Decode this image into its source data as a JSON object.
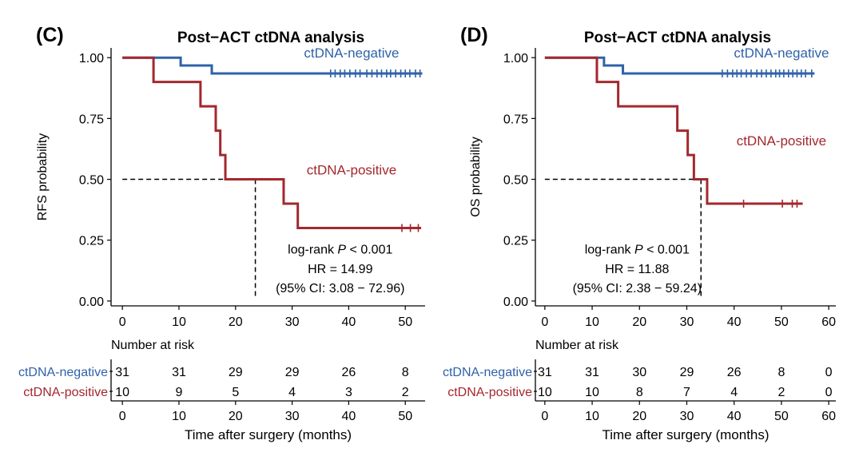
{
  "colors": {
    "negative": "#2f62a8",
    "positive": "#a3282e",
    "axis": "#000000"
  },
  "chart_data": [
    {
      "type": "line",
      "panel": "(C)",
      "title": "Post−ACT ctDNA analysis",
      "xlabel": "Time after surgery (months)",
      "ylabel": "RFS probability",
      "xlim": [
        -2,
        53.5
      ],
      "ylim": [
        -0.02,
        1.04
      ],
      "xticks": [
        0,
        10,
        20,
        30,
        40,
        50
      ],
      "yticks": [
        "0.00",
        "0.25",
        "0.50",
        "0.75",
        "1.00"
      ],
      "series": [
        {
          "name": "ctDNA-negative",
          "color": "#2f62a8",
          "steps": [
            [
              0,
              1.0
            ],
            [
              10.3,
              0.968
            ],
            [
              15.8,
              0.935
            ],
            [
              53,
              0.935
            ]
          ],
          "censored": [
            36.8,
            37.6,
            38.5,
            39.3,
            40.2,
            41.2,
            42.0,
            43.2,
            44.1,
            45.0,
            45.8,
            46.7,
            47.4,
            48.3,
            49.2,
            50.0,
            50.8,
            51.8,
            52.6
          ]
        },
        {
          "name": "ctDNA-positive",
          "color": "#a3282e",
          "steps": [
            [
              0,
              1.0
            ],
            [
              5.5,
              0.9
            ],
            [
              13.8,
              0.8
            ],
            [
              16.5,
              0.7
            ],
            [
              17.3,
              0.6
            ],
            [
              18.2,
              0.5
            ],
            [
              28.5,
              0.4
            ],
            [
              31.0,
              0.3
            ],
            [
              52.8,
              0.3
            ]
          ],
          "censored": [
            49.4,
            50.9,
            52.3
          ]
        }
      ],
      "median_line": {
        "y": 0.5,
        "x": 23.5
      },
      "series_labels": [
        {
          "text": "ctDNA-negative",
          "x": 40.5,
          "y": 1.02
        },
        {
          "text": "ctDNA-positive",
          "x": 40.5,
          "y": 0.54
        }
      ],
      "annotations": [
        {
          "pre": "log-rank ",
          "italic": "P",
          "post": " < 0.001",
          "x": 38.5,
          "y": 0.215
        },
        {
          "pre": "HR = 14.99",
          "italic": "",
          "post": "",
          "x": 38.5,
          "y": 0.135
        },
        {
          "pre": "(95% CI: 3.08 − 72.96)",
          "italic": "",
          "post": "",
          "x": 38.5,
          "y": 0.055
        }
      ],
      "risk_table": {
        "title": "Number at risk",
        "times": [
          0,
          10,
          20,
          30,
          40,
          50
        ],
        "rows": [
          {
            "label": "ctDNA-negative",
            "color": "#2f62a8",
            "values": [
              "31",
              "31",
              "29",
              "29",
              "26",
              "8"
            ]
          },
          {
            "label": "ctDNA-positive",
            "color": "#a3282e",
            "values": [
              "10",
              "9",
              "5",
              "4",
              "3",
              "2"
            ]
          }
        ]
      }
    },
    {
      "type": "line",
      "panel": "(D)",
      "title": "Post−ACT ctDNA analysis",
      "xlabel": "Time after surgery (months)",
      "ylabel": "OS probability",
      "xlim": [
        -2,
        61.5
      ],
      "ylim": [
        -0.02,
        1.04
      ],
      "xticks": [
        0,
        10,
        20,
        30,
        40,
        50,
        60
      ],
      "yticks": [
        "0.00",
        "0.25",
        "0.50",
        "0.75",
        "1.00"
      ],
      "series": [
        {
          "name": "ctDNA-negative",
          "color": "#2f62a8",
          "steps": [
            [
              0,
              1.0
            ],
            [
              12.5,
              0.968
            ],
            [
              16.5,
              0.935
            ],
            [
              57,
              0.935
            ]
          ],
          "censored": [
            37.5,
            38.6,
            39.7,
            40.6,
            41.5,
            42.6,
            43.6,
            44.8,
            45.8,
            46.8,
            47.8,
            48.8,
            49.6,
            50.5,
            51.5,
            52.4,
            53.3,
            54.2,
            55.1,
            56.4
          ]
        },
        {
          "name": "ctDNA-positive",
          "color": "#a3282e",
          "steps": [
            [
              0,
              1.0
            ],
            [
              11.0,
              0.9
            ],
            [
              15.5,
              0.8
            ],
            [
              28.0,
              0.7
            ],
            [
              30.2,
              0.6
            ],
            [
              31.5,
              0.5
            ],
            [
              34.3,
              0.4
            ],
            [
              54.5,
              0.4
            ]
          ],
          "censored": [
            42.0,
            50.2,
            52.3,
            53.3
          ]
        }
      ],
      "median_line": {
        "y": 0.5,
        "x": 33.0
      },
      "series_labels": [
        {
          "text": "ctDNA-negative",
          "x": 50.0,
          "y": 1.02
        },
        {
          "text": "ctDNA-positive",
          "x": 50.0,
          "y": 0.66
        }
      ],
      "annotations": [
        {
          "pre": "log-rank ",
          "italic": "P",
          "post": " < 0.001",
          "x": 19.5,
          "y": 0.215
        },
        {
          "pre": "HR = 11.88",
          "italic": "",
          "post": "",
          "x": 19.5,
          "y": 0.135
        },
        {
          "pre": "(95% CI: 2.38 − 59.24)",
          "italic": "",
          "post": "",
          "x": 19.5,
          "y": 0.055
        }
      ],
      "risk_table": {
        "title": "Number at risk",
        "times": [
          0,
          10,
          20,
          30,
          40,
          50,
          60
        ],
        "rows": [
          {
            "label": "ctDNA-negative",
            "color": "#2f62a8",
            "values": [
              "31",
              "31",
              "30",
              "29",
              "26",
              "8",
              "0"
            ]
          },
          {
            "label": "ctDNA-positive",
            "color": "#a3282e",
            "values": [
              "10",
              "10",
              "8",
              "7",
              "4",
              "2",
              "0"
            ]
          }
        ]
      }
    }
  ]
}
